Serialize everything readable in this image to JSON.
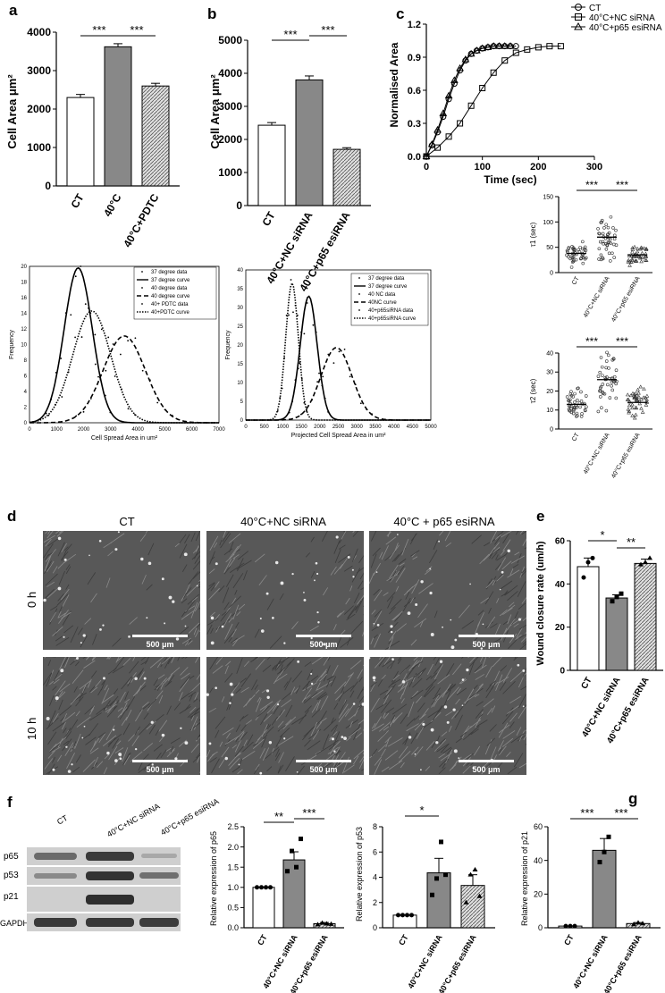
{
  "panels": {
    "a": "a",
    "b": "b",
    "c": "c",
    "d": "d",
    "e": "e",
    "f": "f",
    "g": "g"
  },
  "chart_data": [
    {
      "id": "a_bar",
      "type": "bar",
      "categories": [
        "CT",
        "40°C",
        "40°C+PDTC"
      ],
      "values": [
        2300,
        3620,
        2600
      ],
      "errors": [
        80,
        80,
        70
      ],
      "ylabel": "Cell Area μm²",
      "ylim": [
        0,
        4000
      ],
      "yticks": [
        "0",
        "1000",
        "2000",
        "3000",
        "4000"
      ],
      "significance": [
        "***",
        "***"
      ]
    },
    {
      "id": "b_bar",
      "type": "bar",
      "categories": [
        "CT",
        "40°C+NC siRNA",
        "40°C+p65 esiRNA"
      ],
      "values": [
        2430,
        3800,
        1700
      ],
      "errors": [
        80,
        120,
        50
      ],
      "ylabel": "Cell Area μm²",
      "ylim": [
        0,
        5000
      ],
      "yticks": [
        "0",
        "1000",
        "2000",
        "3000",
        "4000",
        "5000"
      ],
      "significance": [
        "***",
        "***"
      ]
    },
    {
      "id": "c_line",
      "type": "line",
      "xlabel": "Time (sec)",
      "ylabel": "Normalised Area",
      "xlim": [
        0,
        300
      ],
      "ylim": [
        0,
        1.2
      ],
      "xticks": [
        "0",
        "100",
        "200",
        "300"
      ],
      "yticks": [
        "0.0",
        "0.3",
        "0.6",
        "0.9",
        "1.2"
      ],
      "legend": [
        "CT",
        "40°C+NC siRNA",
        "40°C+p65 esiRNA"
      ],
      "series": [
        {
          "name": "CT",
          "x": [
            0,
            10,
            20,
            30,
            40,
            50,
            60,
            70,
            80,
            90,
            100,
            110,
            120,
            130,
            140,
            150,
            160
          ],
          "y": [
            0.0,
            0.1,
            0.22,
            0.36,
            0.52,
            0.66,
            0.78,
            0.87,
            0.93,
            0.96,
            0.98,
            0.99,
            1.0,
            1.0,
            1.0,
            1.0,
            1.0
          ]
        },
        {
          "name": "40°C+NC siRNA",
          "x": [
            0,
            20,
            40,
            60,
            80,
            100,
            120,
            140,
            160,
            180,
            200,
            220,
            240
          ],
          "y": [
            0.0,
            0.08,
            0.18,
            0.3,
            0.46,
            0.62,
            0.76,
            0.87,
            0.94,
            0.97,
            0.99,
            1.0,
            1.0
          ]
        },
        {
          "name": "40°C+p65 esiRNA",
          "x": [
            0,
            10,
            20,
            30,
            40,
            50,
            60,
            70,
            80,
            90,
            100,
            110,
            120,
            130,
            140,
            150
          ],
          "y": [
            0.0,
            0.11,
            0.24,
            0.39,
            0.55,
            0.69,
            0.8,
            0.88,
            0.93,
            0.96,
            0.98,
            0.99,
            1.0,
            1.0,
            1.0,
            1.0
          ]
        }
      ]
    },
    {
      "id": "c_tau1",
      "type": "scatter",
      "categories": [
        "CT",
        "40°C+NC siRNA",
        "40°C+p65 esiRNA"
      ],
      "means": [
        38,
        70,
        35
      ],
      "ylabel": "τ1 (sec)",
      "ylim": [
        0,
        150
      ],
      "yticks": [
        "0",
        "50",
        "100",
        "150"
      ],
      "significance": [
        "***",
        "***"
      ]
    },
    {
      "id": "c_tau2",
      "type": "scatter",
      "categories": [
        "CT",
        "40°C+NC siRNA",
        "40°C+p65 esiRNA"
      ],
      "means": [
        13,
        26,
        14
      ],
      "ylabel": "τ2 (sec)",
      "ylim": [
        0,
        40
      ],
      "yticks": [
        "0",
        "10",
        "20",
        "30",
        "40"
      ],
      "significance": [
        "***",
        "***"
      ]
    },
    {
      "id": "a_hist",
      "type": "line",
      "xlabel": "Cell Spread Area in um²",
      "ylabel": "Frequency",
      "xlim": [
        0,
        7000
      ],
      "ylim": [
        0,
        20
      ],
      "xticks": [
        "0",
        "1000",
        "2000",
        "3000",
        "4000",
        "5000",
        "6000",
        "7000"
      ],
      "yticks": [
        "0",
        "2",
        "4",
        "6",
        "8",
        "10",
        "12",
        "14",
        "16",
        "18",
        "20"
      ],
      "legend": [
        "37 degree data",
        "37 degree curve",
        "40 degree data",
        "40 degree curve",
        "40+ PDTC data",
        "40+PDTC curve"
      ],
      "curves": [
        {
          "name": "37 degree curve",
          "mu": 1800,
          "sigma": 520,
          "peak": 19.8,
          "style": "solid"
        },
        {
          "name": "40 degree curve",
          "mu": 3500,
          "sigma": 780,
          "peak": 11.1,
          "style": "dashed"
        },
        {
          "name": "40+PDTC curve",
          "mu": 2300,
          "sigma": 700,
          "peak": 14.3,
          "style": "dotted"
        }
      ]
    },
    {
      "id": "b_hist",
      "type": "line",
      "xlabel": "Projected Cell Spread Area in um²",
      "ylabel": "Frequency",
      "xlim": [
        0,
        5000
      ],
      "ylim": [
        0,
        40
      ],
      "xticks": [
        "0",
        "500",
        "1000",
        "1500",
        "2000",
        "2500",
        "3000",
        "3500",
        "4000",
        "4500",
        "5000"
      ],
      "yticks": [
        "0",
        "5",
        "10",
        "15",
        "20",
        "25",
        "30",
        "35",
        "40"
      ],
      "legend": [
        "37 degree data",
        "37 degree curve",
        "40 NC data",
        "40NC curve",
        "40+p65siRNA data",
        "40+p65siRNA curve"
      ],
      "curves": [
        {
          "name": "37 degree curve",
          "mu": 1700,
          "sigma": 230,
          "peak": 33,
          "style": "solid"
        },
        {
          "name": "40NC curve",
          "mu": 2450,
          "sigma": 420,
          "peak": 19.3,
          "style": "dashed"
        },
        {
          "name": "40+p65siRNA curve",
          "mu": 1250,
          "sigma": 170,
          "peak": 36.5,
          "style": "dotted"
        }
      ]
    },
    {
      "id": "e_bar",
      "type": "bar",
      "categories": [
        "CT",
        "40°C+NC siRNA",
        "40°C+p65 esiRNA"
      ],
      "values": [
        48,
        33.5,
        49.5
      ],
      "errors": [
        4,
        1.5,
        2
      ],
      "ylabel": "Wound closure rate (um/h)",
      "ylim": [
        0,
        60
      ],
      "yticks": [
        "0",
        "20",
        "40",
        "60"
      ],
      "significance": [
        "*",
        "**"
      ]
    },
    {
      "id": "f_p65",
      "type": "bar",
      "categories": [
        "CT",
        "40°C+NC siRNA",
        "40°C+p65 esiRNA"
      ],
      "values": [
        1.0,
        1.68,
        0.1
      ],
      "errors": [
        0,
        0.2,
        0.03
      ],
      "ylabel": "Relative expression of p65",
      "ylim": [
        0,
        2.5
      ],
      "yticks": [
        "0.0",
        "0.5",
        "1.0",
        "1.5",
        "2.0",
        "2.5"
      ],
      "significance": [
        "**",
        "***"
      ]
    },
    {
      "id": "f_p53",
      "type": "bar",
      "categories": [
        "CT",
        "40°C+NC siRNA",
        "40°C+p65 esiRNA"
      ],
      "values": [
        1.0,
        4.35,
        3.35
      ],
      "errors": [
        0,
        1.15,
        0.85
      ],
      "ylabel": "Relative expression of p53",
      "ylim": [
        0,
        8
      ],
      "yticks": [
        "0",
        "2",
        "4",
        "6",
        "8"
      ],
      "significance": [
        "*"
      ]
    },
    {
      "id": "g_p21",
      "type": "bar",
      "categories": [
        "CT",
        "40°C+NC siRNA",
        "40°C+p65 esiRNA"
      ],
      "values": [
        1.0,
        46,
        2.5
      ],
      "errors": [
        0,
        7,
        0.6
      ],
      "ylabel": "Relative expression of p21",
      "ylim": [
        0,
        60
      ],
      "yticks": [
        "0",
        "20",
        "40",
        "60"
      ],
      "significance": [
        "***",
        "***"
      ]
    }
  ],
  "micro": {
    "columns": [
      "CT",
      "40°C+NC siRNA",
      "40°C + p65 esiRNA"
    ],
    "rows": [
      "0 h",
      "10 h"
    ],
    "scale": "500 μm"
  },
  "blot": {
    "lanes": [
      "CT",
      "40°C+NC siRNA",
      "40°C+p65 esiRNA"
    ],
    "bands": [
      "p65",
      "p53",
      "p21",
      "GAPDH"
    ]
  }
}
